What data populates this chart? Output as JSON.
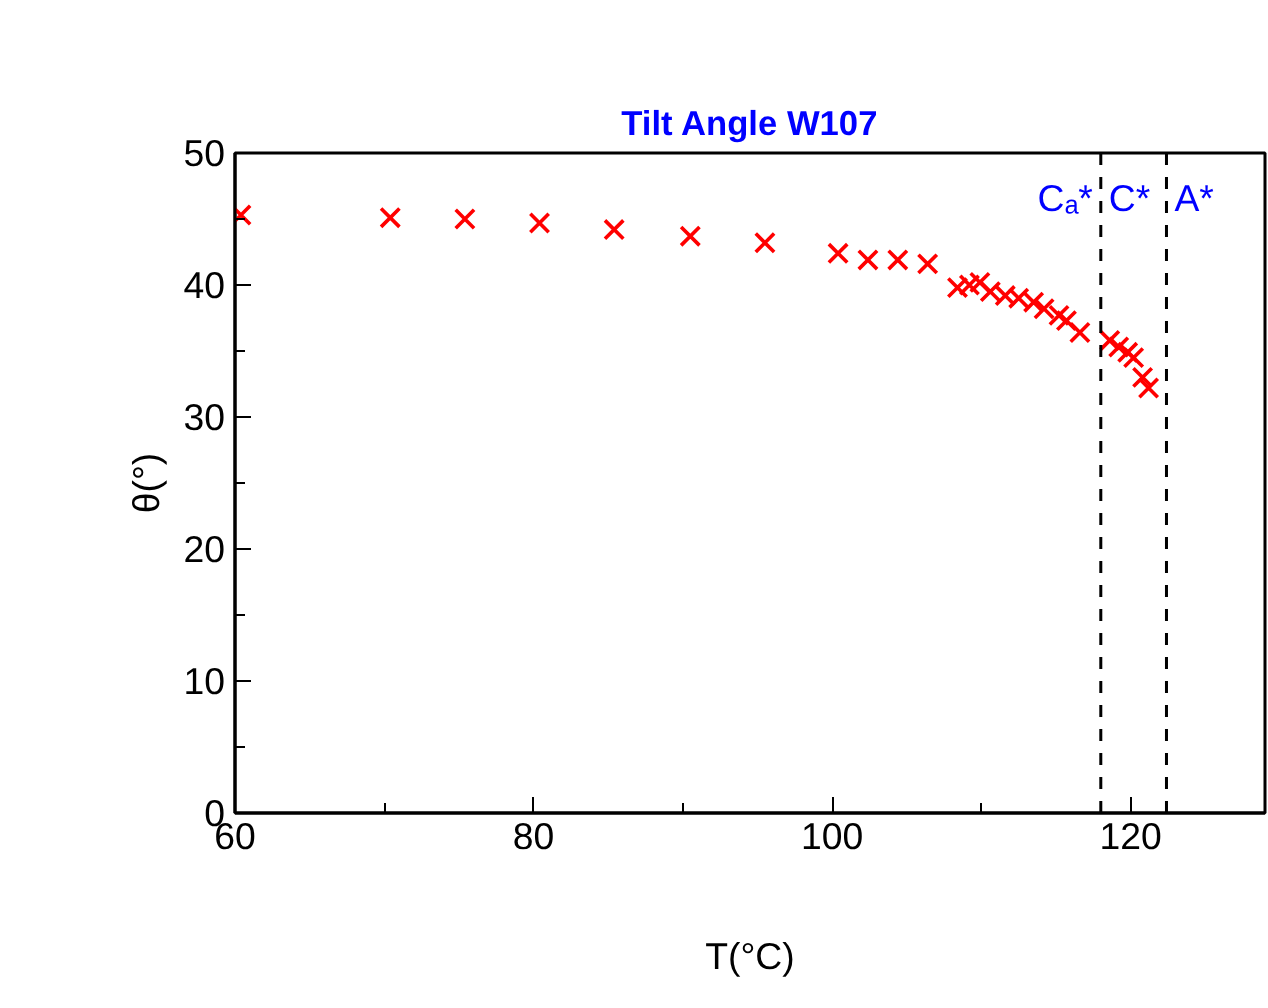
{
  "chart_data": {
    "type": "scatter",
    "title": "Tilt Angle W107",
    "xlabel": "T(°C)",
    "ylabel": "θ(°)",
    "x": [
      60.4,
      70.4,
      75.4,
      80.4,
      85.4,
      90.5,
      95.5,
      100.4,
      102.4,
      104.4,
      106.4,
      108.4,
      109.2,
      109.9,
      110.6,
      111.6,
      112.5,
      113.5,
      114.2,
      115.2,
      115.7,
      116.6,
      118.6,
      119.2,
      119.8,
      120.2,
      120.8,
      121.2
    ],
    "series": [
      {
        "color": "#ff0000",
        "values": [
          45.3,
          45.1,
          45.0,
          44.7,
          44.2,
          43.7,
          43.2,
          42.4,
          41.9,
          41.9,
          41.6,
          39.8,
          40.0,
          40.2,
          39.5,
          39.2,
          39.0,
          38.7,
          38.2,
          37.7,
          37.3,
          36.4,
          35.8,
          35.3,
          34.9,
          34.5,
          33.0,
          32.2
        ]
      }
    ],
    "marker": "cross",
    "xlim": [
      60,
      129
    ],
    "ylim": [
      0,
      50
    ],
    "xticks": [
      60,
      80,
      100,
      120
    ],
    "yticks": [
      0,
      10,
      20,
      30,
      40,
      50
    ],
    "grid": false,
    "ref_lines": [
      {
        "axis": "x",
        "value": 118.0,
        "color": "#000000",
        "line_style": "dashed"
      },
      {
        "axis": "x",
        "value": 122.4,
        "color": "#000000",
        "line_style": "dashed"
      }
    ],
    "annotations": [
      "Cₐ*",
      "C*",
      "A*"
    ]
  }
}
